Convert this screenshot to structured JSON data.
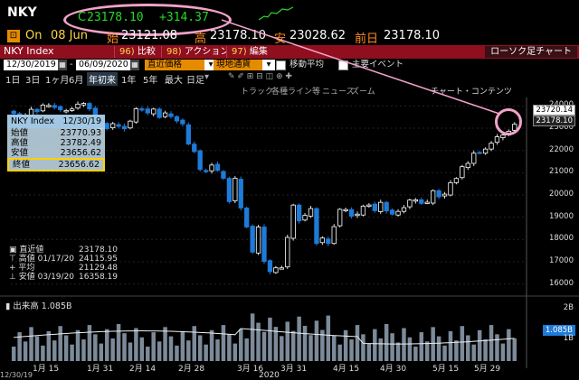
{
  "ticker": {
    "symbol": "NKY",
    "value_prefix": "C",
    "last": "23178.10",
    "change": "+314.37"
  },
  "quote": {
    "on_label": "On",
    "date": "08 Jun",
    "open_label": "始",
    "open": "23121.08",
    "high_label": "高",
    "high": "23178.10",
    "low_label": "安",
    "low": "23028.62",
    "prev_label": "前日",
    "prev": "23178.10"
  },
  "security": {
    "name": "NKY Index",
    "buttons": [
      {
        "num": "96)",
        "label": "比較"
      },
      {
        "num": "98)",
        "label": "アクション"
      },
      {
        "num": "97)",
        "label": "編集"
      }
    ],
    "chart_type": "ローソク足チャート"
  },
  "controls": {
    "start_date": "12/30/2019",
    "end_date": "06/09/2020",
    "price_type": "直近価格",
    "currency": "現地通貨",
    "moving_avg": "移動平均",
    "events": "主要イベント"
  },
  "periods": [
    "1日",
    "3日",
    "1ヶ月",
    "6月",
    "年初来",
    "1年",
    "5年",
    "最大",
    "日足"
  ],
  "selected_period": "年初来",
  "tools": [
    "トラック",
    "各種ライン等",
    "ニュース",
    "ズーム",
    "チャート・コンテンツ"
  ],
  "info_box": {
    "title": "NKY Index",
    "date": "12/30/19",
    "rows": [
      {
        "label": "始値",
        "value": "23770.93"
      },
      {
        "label": "高値",
        "value": "23782.49"
      },
      {
        "label": "安値",
        "value": "23656.62"
      }
    ],
    "last_label": "終値",
    "last_value": "23656.62"
  },
  "stats": [
    {
      "label": "直近値",
      "date": "",
      "value": "23178.10"
    },
    {
      "label": "高値",
      "date": "01/17/20",
      "value": "24115.95"
    },
    {
      "label": "平均",
      "date": "",
      "value": "21129.48"
    },
    {
      "label": "安値",
      "date": "03/19/20",
      "value": "16358.19"
    }
  ],
  "volume": {
    "label": "出来高",
    "value": "1.085B",
    "badge": "1.085B"
  },
  "y_axis": {
    "ticks": [
      "24000",
      "23000",
      "22000",
      "21000",
      "20000",
      "19000",
      "18000",
      "17000",
      "16000"
    ],
    "last_badge": "23178.10",
    "prev_badge": "23720.14"
  },
  "volume_axis": {
    "ticks": [
      "2B",
      "1B"
    ]
  },
  "x_axis": {
    "ticks": [
      "1月 15",
      "1月 31",
      "2月 14",
      "2月 28",
      "3月 16",
      "3月 31",
      "4月 15",
      "4月 30",
      "5月 15",
      "5月 29"
    ],
    "year": "2020",
    "start": "12/30/19"
  },
  "colors": {
    "up": "#ffffff",
    "down": "#1e7bd8",
    "accent": "#e48b00",
    "header": "#8f0f1f",
    "highlight": "#f1a2c8"
  },
  "chart_data": {
    "type": "candlestick",
    "series": [
      {
        "name": "NKY Index",
        "values": [
          23656.62,
          23204.86,
          23575.72,
          23850.57,
          23739.87,
          24041.26,
          24025.17,
          23933.13,
          23827.98,
          23795.44,
          23864.56,
          24083.51,
          24115.95,
          23864.56,
          23031.21,
          23215.71,
          22977.75,
          23205.18,
          23084.59,
          22971.94,
          23319.56,
          23873.59,
          23827.73,
          23685.98,
          23861.21,
          23479.15,
          23687.59,
          23523.24,
          23325.98,
          23193.8,
          22286.04,
          21948.23,
          21142.96,
          21082.73,
          21344.08,
          21100.06,
          20749.75,
          19698.76,
          20749.75,
          19416.06,
          18559.63,
          17431.05,
          18559.63,
          17011.53,
          16552.83,
          16726.55,
          16726.55,
          18092.35,
          19546.63,
          18832.21,
          19084.97,
          19389.43,
          17818.72,
          18065.41,
          17820.19,
          18576.3,
          19353.24,
          19345.77,
          19043.4,
          19138.37,
          19500.02,
          19550.09,
          19290.2,
          19669.12,
          19280.78,
          19137.95,
          19262.0,
          19429.44,
          19771.19,
          19783.22,
          19619.35,
          19674.77,
          20193.69,
          19914.78,
          20037.47,
          20552.31,
          20741.65,
          21271.17,
          21419.23,
          21877.89,
          21916.31,
          22062.39,
          22325.61,
          22613.76,
          22695.74,
          22863.73,
          23178.1
        ]
      }
    ],
    "high": 24115.95,
    "low": 16358.19,
    "average": 21129.48,
    "last": 23178.1,
    "ylim": [
      15700,
      24300
    ]
  }
}
